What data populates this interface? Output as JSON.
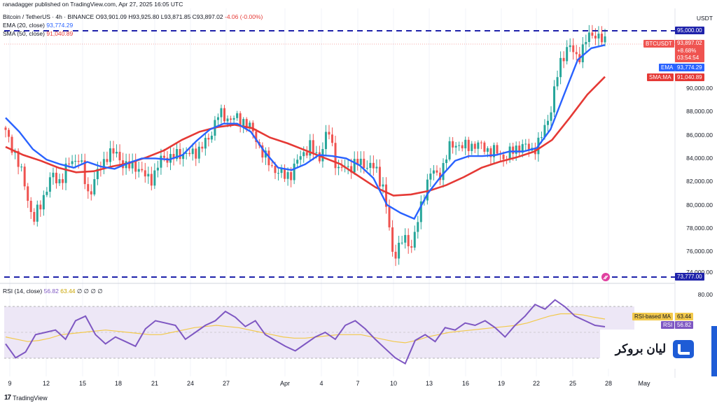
{
  "publisher": "ranadagger published on TradingView.com, Apr 27, 2025 16:05 UTC",
  "symbol_line": {
    "name": "Bitcoin / TetherUS · 4h · BINANCE",
    "o": "O93,901.09",
    "h": "H93,925.80",
    "l": "L93,871.85",
    "c": "C93,897.02",
    "chg": "-4.06 (-0.00%)"
  },
  "indicators": {
    "ema": {
      "label": "EMA (20, close)",
      "value": "93,774.29"
    },
    "sma": {
      "label": "SMA (50, close)",
      "value": "91,040.89"
    },
    "rsi": {
      "label": "RSI (14, close)",
      "value": "56.82",
      "ma_value": "63.44",
      "extra": "∅ ∅ ∅ ∅"
    }
  },
  "price_scale": {
    "currency": "USDT",
    "ticks": [
      "95,000.00",
      "90,000.00",
      "88,000.00",
      "86,000.00",
      "84,000.00",
      "82,000.00",
      "80,000.00",
      "78,000.00",
      "76,000.00",
      "74,000.00",
      "73,777.00"
    ]
  },
  "rsi_scale": {
    "ticks": [
      "80.00"
    ]
  },
  "tags": {
    "level_top": "95,000.00",
    "btc_label": "BTCUSDT",
    "btc_price": "93,897.02",
    "btc_pct": "+8.68%",
    "countdown": "03:54:54",
    "ema_label": "EMA",
    "ema_value": "93,774.29",
    "sma_label": "SMA:MA",
    "sma_value": "91,040.89",
    "level_bottom": "73,777.00",
    "rsi_ma_label": "RSI-based MA",
    "rsi_ma_value": "63.44",
    "rsi_label": "RSI",
    "rsi_value": "56.82"
  },
  "x_axis": [
    "9",
    "12",
    "15",
    "18",
    "21",
    "24",
    "27",
    "Apr",
    "4",
    "7",
    "10",
    "13",
    "16",
    "19",
    "22",
    "25",
    "28",
    "May"
  ],
  "brand": {
    "name": "لیان بروکر"
  },
  "footer": {
    "logo": "17",
    "name": "TradingView"
  },
  "colors": {
    "up": "#26a69a",
    "down": "#ef5350",
    "ema": "#2962ff",
    "sma": "#e53935",
    "rsi": "#7e57c2",
    "rsi_ma": "#f2c94c",
    "rsi_fill": "#ede7f6",
    "level": "#1e22aa",
    "accent": "#1e5cd6"
  },
  "chart_data": [
    {
      "type": "candlestick",
      "title": "Bitcoin / TetherUS · 4h · BINANCE",
      "x_ticks": [
        "9",
        "12",
        "15",
        "18",
        "21",
        "24",
        "27",
        "Apr",
        "4",
        "7",
        "10",
        "13",
        "16",
        "19",
        "22",
        "25",
        "28",
        "May"
      ],
      "ylim": [
        73000,
        96500
      ],
      "horizontal_levels": [
        95000,
        73777
      ],
      "series_closes": [
        86200,
        84500,
        82000,
        78500,
        80500,
        82500,
        82000,
        83800,
        84000,
        80800,
        82800,
        84300,
        84500,
        83200,
        83500,
        82500,
        82300,
        84200,
        84000,
        84500,
        84300,
        84800,
        85600,
        87800,
        87500,
        87400,
        87200,
        86000,
        84200,
        83200,
        82500,
        82700,
        84300,
        85000,
        84000,
        86500,
        83000,
        83200,
        83600,
        83500,
        83200,
        81500,
        75500,
        77000,
        76500,
        79500,
        83000,
        82300,
        84800,
        85300,
        84900,
        85300,
        84800,
        84600,
        84100,
        84600,
        85200,
        84600,
        85600,
        87800,
        91800,
        93900,
        92500,
        94300,
        94800,
        93900
      ],
      "ema_20": [
        87500,
        86300,
        84800,
        83900,
        83500,
        83200,
        83700,
        83300,
        83100,
        83600,
        84000,
        84000,
        83900,
        84300,
        85500,
        86500,
        87000,
        87000,
        86300,
        84600,
        83200,
        83000,
        83500,
        84300,
        84200,
        84000,
        83400,
        82300,
        80000,
        79300,
        78800,
        81000,
        82500,
        83800,
        84200,
        84200,
        84300,
        84600,
        84600,
        84900,
        86500,
        89500,
        92500,
        93500,
        93774.29
      ],
      "sma_50": [
        85000,
        84300,
        83800,
        83200,
        82800,
        82900,
        83300,
        83600,
        84100,
        84700,
        85600,
        86300,
        86700,
        86900,
        86600,
        85800,
        85300,
        84700,
        84100,
        83500,
        82500,
        81500,
        80800,
        80900,
        81200,
        81700,
        82400,
        83200,
        83700,
        84100,
        84600,
        85600,
        87500,
        89500,
        91040.89
      ]
    },
    {
      "type": "line",
      "title": "RSI (14, close)",
      "ylim": [
        20,
        90
      ],
      "bands": [
        30,
        70
      ],
      "rsi_14": [
        42,
        30,
        35,
        50,
        52,
        54,
        46,
        62,
        66,
        50,
        42,
        48,
        44,
        40,
        55,
        62,
        60,
        58,
        46,
        52,
        58,
        62,
        70,
        65,
        57,
        62,
        50,
        45,
        40,
        36,
        42,
        48,
        52,
        46,
        58,
        62,
        55,
        46,
        38,
        30,
        25,
        45,
        50,
        44,
        56,
        54,
        60,
        58,
        62,
        56,
        48,
        58,
        66,
        76,
        72,
        80,
        74,
        66,
        62,
        58,
        56.82
      ],
      "rsi_ma": [
        48,
        46,
        44,
        45,
        47,
        50,
        51,
        52,
        53,
        54,
        53,
        52,
        51,
        50,
        50,
        52,
        54,
        56,
        57,
        58,
        57,
        56,
        54,
        52,
        50,
        48,
        47,
        47,
        48,
        49,
        50,
        50,
        50,
        48,
        46,
        44,
        43,
        45,
        48,
        50,
        52,
        53,
        54,
        55,
        56,
        57,
        58,
        60,
        63,
        66,
        68,
        68,
        67,
        65,
        63.44
      ]
    }
  ]
}
